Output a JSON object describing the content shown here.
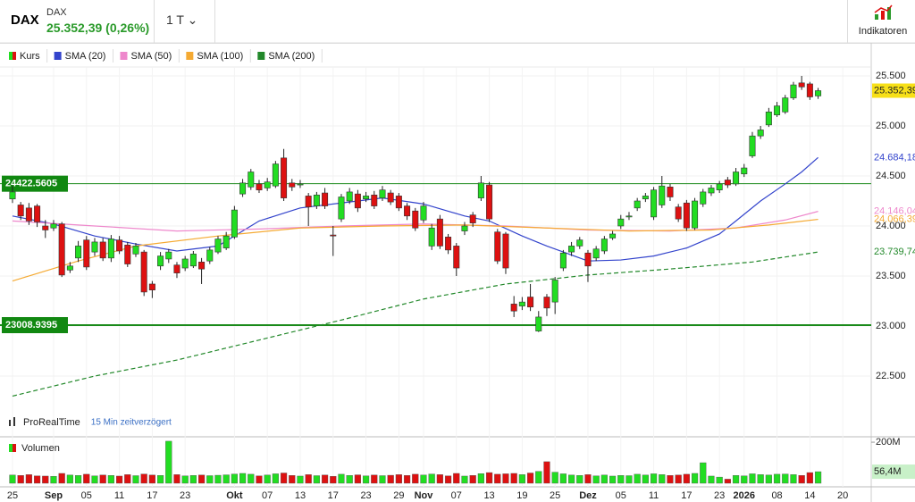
{
  "header": {
    "symbol": "DAX",
    "name": "DAX",
    "quote": "25.352,39 (0,26%)",
    "interval": "1 T",
    "button": "Indikatoren"
  },
  "chart_data": {
    "type": "candlestick",
    "name": "Kurs",
    "up_color": "#22dd22",
    "down_color": "#dd1111",
    "xlim": [
      -1.52,
      104.46
    ],
    "ylim": [
      21902,
      25589
    ],
    "yticks": [
      {
        "value": 22500,
        "label": "22.500"
      },
      {
        "value": 23000,
        "label": "23.000"
      },
      {
        "value": 23500,
        "label": "23.500"
      },
      {
        "value": 24000,
        "label": "24.000"
      },
      {
        "value": 24500,
        "label": "24.500"
      },
      {
        "value": 25000,
        "label": "25.000"
      },
      {
        "value": 25500,
        "label": "25.500"
      }
    ],
    "xticks": [
      {
        "value": 0,
        "label": "25"
      },
      {
        "value": 5,
        "label": "Sep"
      },
      {
        "value": 9,
        "label": "05"
      },
      {
        "value": 13,
        "label": "11"
      },
      {
        "value": 17,
        "label": "17"
      },
      {
        "value": 21,
        "label": "23"
      },
      {
        "value": 27,
        "label": "Okt"
      },
      {
        "value": 31,
        "label": "07"
      },
      {
        "value": 35,
        "label": "13"
      },
      {
        "value": 39,
        "label": "17"
      },
      {
        "value": 43,
        "label": "23"
      },
      {
        "value": 47,
        "label": "29"
      },
      {
        "value": 50,
        "label": "Nov"
      },
      {
        "value": 54,
        "label": "07"
      },
      {
        "value": 58,
        "label": "13"
      },
      {
        "value": 62,
        "label": "19"
      },
      {
        "value": 66,
        "label": "25"
      },
      {
        "value": 70,
        "label": "Dez"
      },
      {
        "value": 74,
        "label": "05"
      },
      {
        "value": 78,
        "label": "11"
      },
      {
        "value": 82,
        "label": "17"
      },
      {
        "value": 86,
        "label": "23"
      },
      {
        "value": 89,
        "label": "2026"
      },
      {
        "value": 93,
        "label": "08"
      },
      {
        "value": 97,
        "label": "14"
      },
      {
        "value": 101,
        "label": "20"
      }
    ],
    "open": [
      24270,
      24210,
      24180,
      24200,
      24000,
      23980,
      24020,
      23560,
      23680,
      23860,
      23740,
      23840,
      23680,
      23860,
      23810,
      23720,
      23740,
      23420,
      23600,
      23670,
      23610,
      23580,
      23600,
      23640,
      23650,
      23740,
      23780,
      23890,
      24320,
      24390,
      24420,
      24380,
      24400,
      24680,
      24430,
      24410,
      24300,
      24200,
      24330,
      23910,
      24070,
      24250,
      24320,
      24270,
      24310,
      24280,
      24330,
      24300,
      24200,
      24150,
      24060,
      23800,
      24070,
      23890,
      23800,
      23950,
      24110,
      24280,
      24410,
      23940,
      23920,
      23220,
      23200,
      23290,
      22950,
      23290,
      23240,
      23580,
      23740,
      23800,
      23730,
      23680,
      23750,
      23880,
      24000,
      24090,
      24180,
      24270,
      24090,
      24210,
      24390,
      24190,
      24230,
      23980,
      24220,
      24330,
      24360,
      24460,
      24420,
      24520,
      24700,
      24900,
      25010,
      25110,
      25140,
      25280,
      25430,
      25420,
      25300
    ],
    "high": [
      24400,
      24240,
      24230,
      24220,
      24060,
      24060,
      24040,
      23640,
      23850,
      23900,
      23880,
      23880,
      23910,
      23900,
      23840,
      23830,
      23760,
      23450,
      23740,
      23770,
      23640,
      23700,
      23750,
      23680,
      23790,
      23900,
      23940,
      24200,
      24470,
      24570,
      24460,
      24480,
      24650,
      24770,
      24470,
      24460,
      24330,
      24340,
      24380,
      24000,
      24320,
      24380,
      24360,
      24340,
      24350,
      24400,
      24360,
      24330,
      24230,
      24180,
      24240,
      24020,
      24110,
      23920,
      23830,
      24040,
      24140,
      24500,
      24440,
      23970,
      23940,
      23300,
      23290,
      23420,
      23150,
      23320,
      23490,
      23760,
      23840,
      23890,
      23760,
      23800,
      23900,
      23950,
      24110,
      24140,
      24280,
      24330,
      24390,
      24500,
      24420,
      24220,
      24260,
      24280,
      24370,
      24410,
      24450,
      24490,
      24580,
      24620,
      24940,
      25000,
      25180,
      25240,
      25310,
      25440,
      25500,
      25440,
      25380
    ],
    "low": [
      24230,
      24060,
      24010,
      23990,
      23880,
      23950,
      23490,
      23530,
      23640,
      23560,
      23700,
      23650,
      23640,
      23720,
      23590,
      23690,
      23300,
      23280,
      23560,
      23630,
      23480,
      23550,
      23580,
      23420,
      23620,
      23720,
      23760,
      23870,
      24290,
      24360,
      24330,
      24350,
      24380,
      24250,
      24350,
      24380,
      24000,
      24170,
      24170,
      23700,
      24040,
      24220,
      24140,
      24240,
      24170,
      24250,
      24210,
      24150,
      24060,
      23950,
      24030,
      23760,
      23770,
      23720,
      23500,
      23910,
      23990,
      24250,
      24040,
      23620,
      23520,
      23090,
      23160,
      23150,
      22940,
      23100,
      23120,
      23550,
      23700,
      23770,
      23440,
      23650,
      23720,
      23860,
      23970,
      24060,
      24150,
      24240,
      24060,
      24180,
      24250,
      24040,
      23950,
      23960,
      24190,
      24300,
      24330,
      24380,
      24400,
      24490,
      24680,
      24870,
      24990,
      25090,
      25120,
      25260,
      25360,
      25260,
      25270
    ],
    "close": [
      24340,
      24100,
      24050,
      24040,
      23960,
      24020,
      23510,
      23600,
      23800,
      23590,
      23840,
      23680,
      23870,
      23750,
      23620,
      23800,
      23340,
      23360,
      23700,
      23740,
      23530,
      23670,
      23720,
      23570,
      23760,
      23870,
      23900,
      24160,
      24430,
      24540,
      24360,
      24440,
      24620,
      24280,
      24390,
      24420,
      24190,
      24310,
      24200,
      23900,
      24290,
      24340,
      24180,
      24300,
      24200,
      24360,
      24240,
      24180,
      24100,
      23980,
      24200,
      23980,
      23800,
      23760,
      23580,
      24000,
      24030,
      24430,
      24070,
      23650,
      23580,
      23150,
      23240,
      23190,
      23090,
      23180,
      23460,
      23730,
      23800,
      23860,
      23600,
      23770,
      23870,
      23920,
      24070,
      24100,
      24250,
      24300,
      24360,
      24400,
      24290,
      24070,
      23980,
      24250,
      24340,
      24380,
      24420,
      24410,
      24540,
      24580,
      24900,
      24960,
      25140,
      25200,
      25280,
      25410,
      25390,
      25290,
      25352.39
    ],
    "price_label": {
      "value": 25352.39,
      "label": "25.352,39"
    },
    "levels": [
      24422.5605,
      23008.9395
    ],
    "series": [
      {
        "name": "SMA (20)",
        "color": "#3344cc",
        "dash": false,
        "x": [
          0,
          5,
          10,
          15,
          20,
          25,
          30,
          35,
          40,
          45,
          50,
          55,
          58,
          62,
          65,
          70,
          74,
          78,
          82,
          86,
          88,
          91,
          94,
          96,
          98
        ],
        "values": [
          24100,
          24020,
          23900,
          23820,
          23750,
          23800,
          24050,
          24180,
          24230,
          24280,
          24220,
          24100,
          24050,
          23900,
          23800,
          23650,
          23660,
          23700,
          23780,
          23920,
          24050,
          24250,
          24420,
          24540,
          24684.18
        ],
        "last": {
          "value": 24684.18,
          "label": "24.684,18"
        }
      },
      {
        "name": "SMA (50)",
        "color": "#ee88cc",
        "dash": false,
        "x": [
          0,
          10,
          20,
          30,
          40,
          50,
          60,
          70,
          80,
          88,
          94,
          98
        ],
        "values": [
          24050,
          24000,
          23950,
          23970,
          24000,
          24020,
          24000,
          23960,
          23950,
          23980,
          24060,
          24146.04
        ],
        "last": {
          "value": 24146.04,
          "label": "24.146,04"
        }
      },
      {
        "name": "SMA (100)",
        "color": "#f5aa33",
        "dash": false,
        "x": [
          0,
          8,
          15,
          25,
          35,
          45,
          55,
          65,
          75,
          85,
          92,
          98
        ],
        "values": [
          23450,
          23650,
          23800,
          23900,
          23980,
          24000,
          24010,
          23980,
          23950,
          23960,
          24010,
          24066.39
        ],
        "last": {
          "value": 24066.39,
          "label": "24.066,39"
        }
      },
      {
        "name": "SMA (200)",
        "color": "#22882a",
        "dash": true,
        "x": [
          0,
          10,
          20,
          30,
          40,
          50,
          60,
          70,
          80,
          90,
          98
        ],
        "values": [
          22300,
          22500,
          22660,
          22860,
          23060,
          23270,
          23420,
          23510,
          23570,
          23640,
          23739.74
        ],
        "last": {
          "value": 23739.74,
          "label": "23.739,74"
        }
      }
    ],
    "source": "ProRealTime",
    "source_note": "15 Min zeitverzögert",
    "volume": {
      "title": "Volumen",
      "ylim": [
        0,
        222
      ],
      "yticks": [
        {
          "value": 200,
          "label": "200M"
        }
      ],
      "last_label": {
        "value": 56.4,
        "label": "56,4M"
      },
      "values": [
        40,
        38,
        42,
        36,
        35,
        34,
        48,
        40,
        38,
        44,
        36,
        40,
        38,
        35,
        42,
        37,
        45,
        40,
        38,
        205,
        42,
        36,
        38,
        40,
        37,
        39,
        41,
        45,
        48,
        44,
        36,
        40,
        46,
        50,
        38,
        35,
        42,
        37,
        40,
        34,
        44,
        38,
        41,
        36,
        40,
        37,
        39,
        42,
        38,
        44,
        40,
        45,
        42,
        36,
        48,
        35,
        38,
        47,
        52,
        44,
        46,
        48,
        42,
        50,
        58,
        105,
        54,
        46,
        40,
        38,
        42,
        36,
        40,
        35,
        38,
        37,
        44,
        40,
        46,
        42,
        38,
        40,
        44,
        48,
        100,
        35,
        30,
        20,
        38,
        36,
        46,
        42,
        40,
        44,
        45,
        42,
        38,
        52,
        56.4
      ]
    }
  }
}
